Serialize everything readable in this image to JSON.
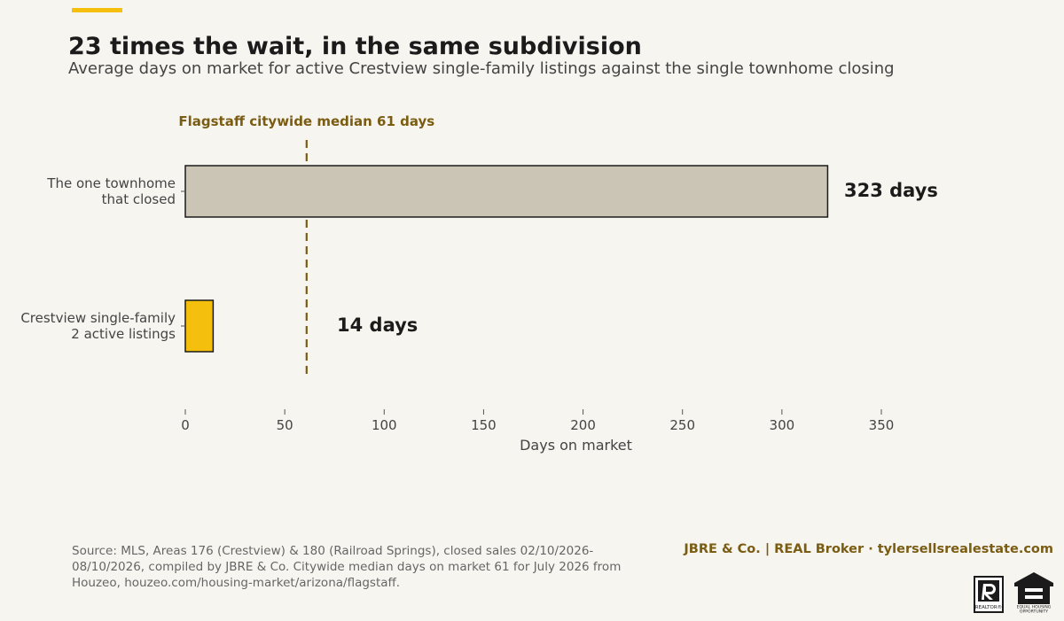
{
  "header": {
    "title": "23 times the wait, in the same subdivision",
    "subtitle": "Average days on market for active Crestview single-family listings against the single townhome closing"
  },
  "chart_data": {
    "type": "bar",
    "orientation": "horizontal",
    "categories": [
      [
        "The one townhome",
        "that closed"
      ],
      [
        "Crestview single-family",
        "2 active listings"
      ]
    ],
    "values": [
      323,
      14
    ],
    "value_labels": [
      "323 days",
      "14 days"
    ],
    "bar_colors": [
      "#cbc5b5",
      "#f5bf0d"
    ],
    "xlabel": "Days on market",
    "xlim": [
      0,
      350
    ],
    "xticks": [
      0,
      50,
      100,
      150,
      200,
      250,
      300,
      350
    ],
    "reference_line": {
      "value": 61,
      "label": "Flagstaff citywide median 61 days",
      "color": "#7a5c12"
    },
    "grid": false
  },
  "footer": {
    "source": "Source: MLS, Areas 176 (Crestview) & 180 (Railroad Springs), closed sales 02/10/2026-08/10/2026, compiled by JBRE & Co. Citywide median days on market 61 for July 2026 from Houzeo, houzeo.com/housing-market/arizona/flagstaff.",
    "brand": "JBRE & Co.  |  REAL Broker   ·  tylersellsrealestate.com",
    "realtor_logo_text": "REALTOR",
    "equal_housing_logo_text": "EQUAL HOUSING OPPORTUNITY"
  },
  "colors": {
    "accent": "#f5bf0d",
    "brand": "#7a5c12",
    "background": "#f6f5f0"
  }
}
